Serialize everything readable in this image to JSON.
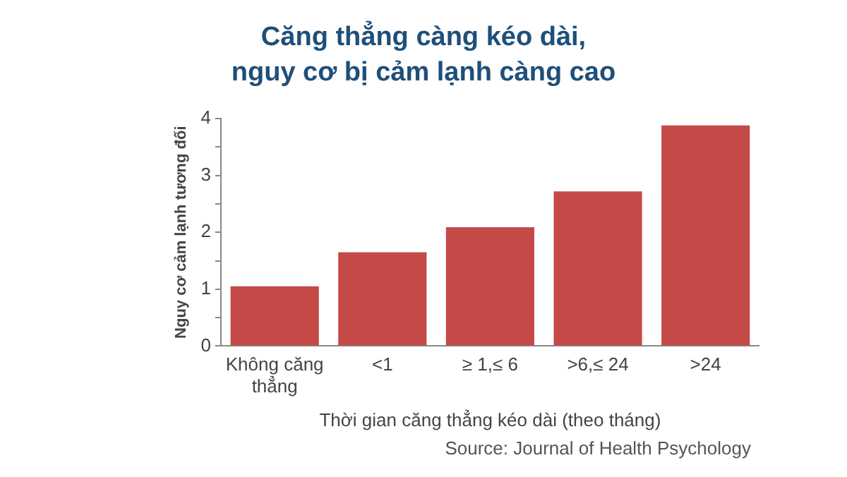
{
  "chart_data": {
    "type": "bar",
    "title": "Căng thẳng càng kéo dài,\nnguy cơ bị cảm lạnh càng cao",
    "categories": [
      "Không căng thẳng",
      "<1",
      "≥ 1,≤ 6",
      ">6,≤ 24",
      ">24"
    ],
    "values": [
      1.05,
      1.65,
      2.09,
      2.72,
      3.88
    ],
    "color": "#c44a48",
    "xlabel": "Thời gian căng thẳng kéo dài (theo tháng)",
    "ylabel": "Nguy cơ cảm lạnh tương đối",
    "ylim": [
      0,
      4
    ],
    "yticks": [
      0,
      {
        "value": 0.5,
        "label": null
      },
      1,
      {
        "value": 1.5,
        "label": null
      },
      2,
      {
        "value": 2.5,
        "label": null
      },
      3,
      {
        "value": 3.5,
        "label": null
      },
      4
    ],
    "grid": false,
    "legend": false,
    "annotations": [
      "Source: Journal of Health Psychology"
    ]
  }
}
